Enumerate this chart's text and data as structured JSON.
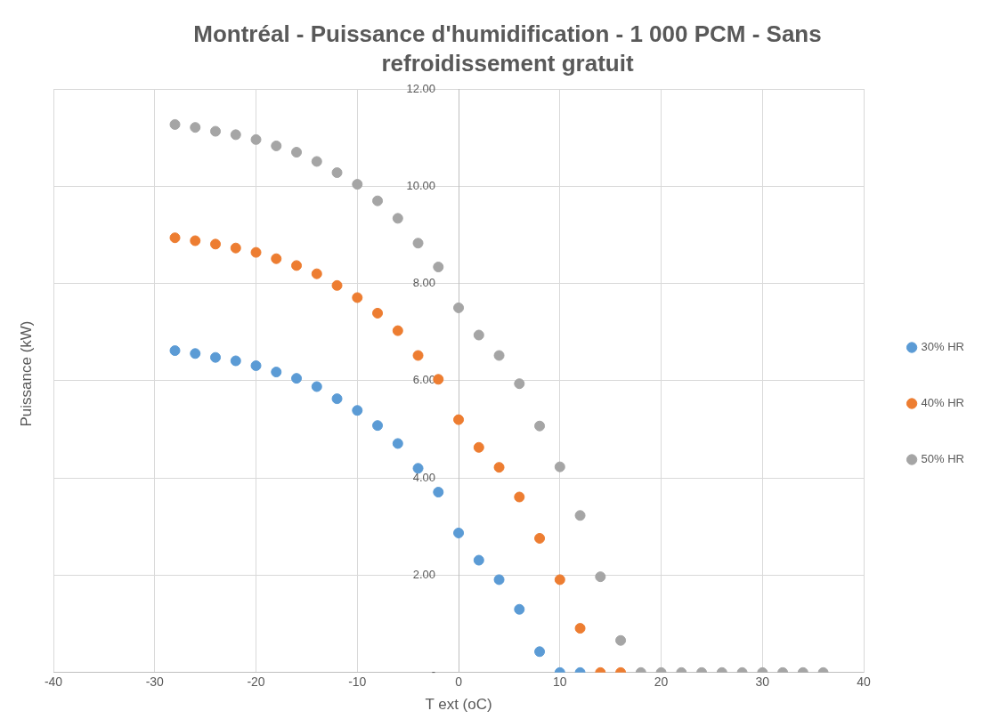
{
  "chart_data": {
    "type": "scatter",
    "title": "Montréal - Puissance d'humidification - 1 000 PCM - Sans refroidissement gratuit",
    "xlabel": "T ext (oC)",
    "ylabel": "Puissance (kW)",
    "x": [
      -28,
      -26,
      -24,
      -22,
      -20,
      -18,
      -16,
      -14,
      -12,
      -10,
      -8,
      -6,
      -4,
      -2,
      0,
      2,
      4,
      6,
      8,
      10,
      12,
      14,
      16,
      18,
      20,
      22,
      24,
      26,
      28,
      30,
      32,
      34,
      36
    ],
    "series": [
      {
        "name": "30% HR",
        "color": "#5b9bd5",
        "values": [
          6.62,
          6.56,
          6.48,
          6.41,
          6.31,
          6.18,
          6.05,
          5.88,
          5.63,
          5.39,
          5.08,
          4.71,
          4.2,
          3.71,
          2.87,
          2.31,
          1.91,
          1.3,
          0.43,
          0,
          0,
          null,
          null,
          null,
          null,
          null,
          null,
          null,
          null,
          null,
          null,
          null,
          null
        ]
      },
      {
        "name": "40% HR",
        "color": "#ed7d31",
        "values": [
          8.94,
          8.88,
          8.81,
          8.73,
          8.64,
          8.51,
          8.37,
          8.2,
          7.96,
          7.71,
          7.39,
          7.03,
          6.52,
          6.03,
          5.2,
          4.63,
          4.22,
          3.61,
          2.76,
          1.91,
          0.91,
          0,
          0,
          null,
          null,
          null,
          null,
          null,
          null,
          null,
          null,
          null,
          null
        ]
      },
      {
        "name": "50% HR",
        "color": "#a5a5a5",
        "values": [
          11.27,
          11.21,
          11.13,
          11.06,
          10.96,
          10.83,
          10.7,
          10.51,
          10.28,
          10.04,
          9.7,
          9.34,
          8.83,
          8.34,
          7.5,
          6.94,
          6.52,
          5.94,
          5.07,
          4.23,
          3.23,
          1.97,
          0.66,
          0,
          0,
          0,
          0,
          0,
          0,
          0,
          0,
          0,
          0
        ]
      }
    ],
    "xlim": [
      -40,
      40
    ],
    "xticks": [
      -40,
      -30,
      -20,
      -10,
      0,
      10,
      20,
      30,
      40
    ],
    "ylim": [
      0,
      12
    ],
    "yticks": [
      {
        "value": 0,
        "label": "-"
      },
      {
        "value": 2,
        "label": "2.00"
      },
      {
        "value": 4,
        "label": "4.00"
      },
      {
        "value": 6,
        "label": "6.00"
      },
      {
        "value": 8,
        "label": "8.00"
      },
      {
        "value": 10,
        "label": "10.00"
      },
      {
        "value": 12,
        "label": "12.00"
      }
    ],
    "grid": true,
    "legend": "right",
    "marker": "circle"
  }
}
